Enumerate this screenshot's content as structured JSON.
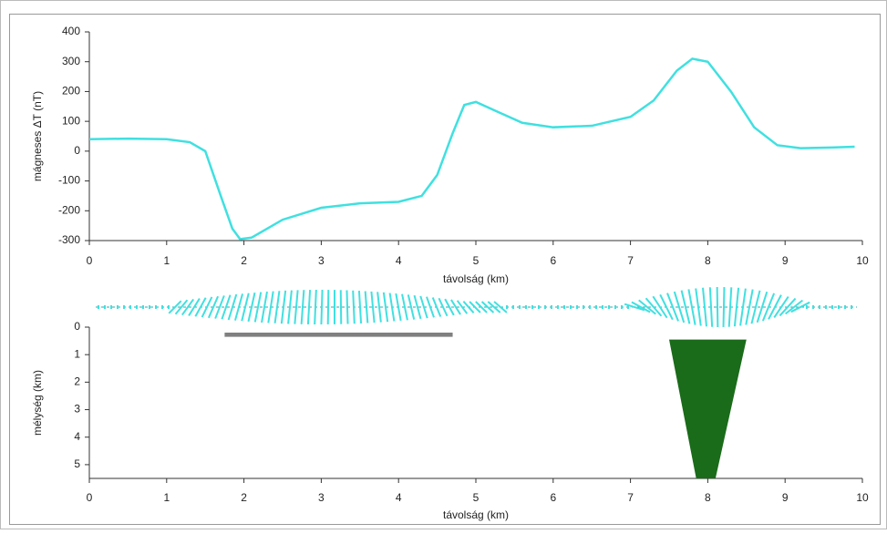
{
  "chart_data": [
    {
      "type": "line",
      "y_label": "mágneses ΔT (nT)",
      "x_label": "távolság (km)",
      "xlim": [
        0,
        10
      ],
      "xticks": [
        0,
        1,
        2,
        3,
        4,
        5,
        6,
        7,
        8,
        9,
        10
      ],
      "ylim": [
        -300,
        400
      ],
      "yticks": [
        -300,
        -200,
        -100,
        0,
        100,
        200,
        300,
        400
      ],
      "series": [
        {
          "color": "#40e0e0",
          "x": [
            0,
            0.5,
            1,
            1.3,
            1.5,
            1.7,
            1.85,
            1.95,
            2.1,
            2.5,
            3,
            3.5,
            4,
            4.3,
            4.5,
            4.7,
            4.85,
            5.0,
            5.3,
            5.6,
            6,
            6.5,
            7,
            7.3,
            7.6,
            7.8,
            8,
            8.3,
            8.6,
            8.9,
            9.2,
            9.6,
            9.9
          ],
          "values": [
            40,
            42,
            40,
            30,
            0,
            -150,
            -260,
            -295,
            -290,
            -230,
            -190,
            -175,
            -170,
            -150,
            -80,
            60,
            155,
            165,
            130,
            95,
            80,
            85,
            115,
            170,
            270,
            310,
            300,
            200,
            80,
            20,
            10,
            12,
            15
          ]
        }
      ]
    },
    {
      "type": "section",
      "y_label": "mélység (km)",
      "x_label": "távolság (km)",
      "xlim": [
        0,
        10
      ],
      "xticks": [
        0,
        1,
        2,
        3,
        4,
        5,
        6,
        7,
        8,
        9,
        10
      ],
      "ylim": [
        0,
        5.5
      ],
      "yticks": [
        0,
        1,
        2,
        3,
        4,
        5
      ],
      "y_inverted": true,
      "bodies": [
        {
          "color": "#808080",
          "x": [
            1.75,
            4.7,
            4.7,
            1.75
          ],
          "y": [
            0.2,
            0.2,
            0.35,
            0.35
          ]
        },
        {
          "color": "#1a6b1a",
          "x": [
            7.5,
            8.5,
            8.1,
            7.85
          ],
          "y": [
            0.45,
            0.45,
            5.5,
            5.5
          ]
        }
      ]
    }
  ]
}
